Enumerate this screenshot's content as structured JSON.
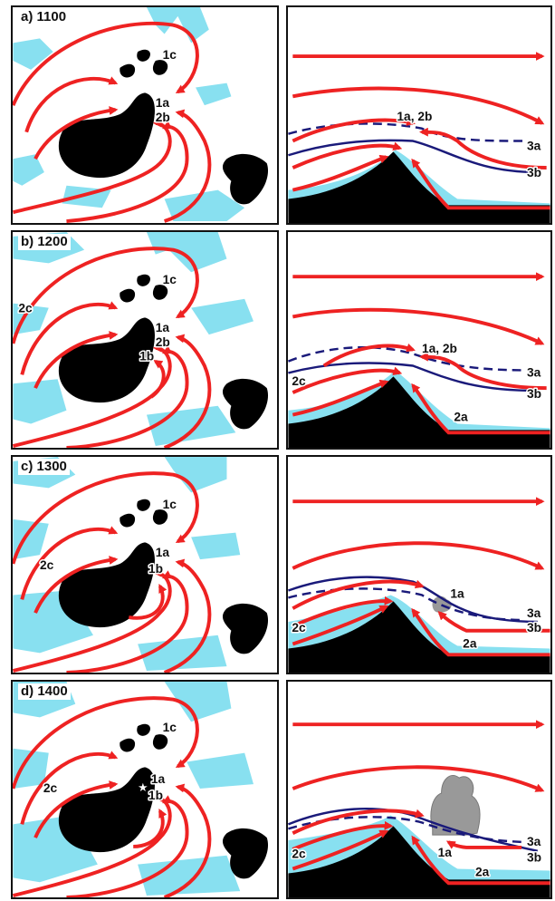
{
  "colors": {
    "flow_arrow": "#ee2222",
    "cloud": "#88e0f0",
    "terrain": "#000000",
    "isentrope": "#1a1a7a",
    "convective_cell": "#999999"
  },
  "panels": [
    {
      "title": "a) 1100",
      "map_labels": {
        "l1c": "1c",
        "l1a": "1a",
        "l2b": "2b"
      },
      "section_labels": {
        "top": "1a, 2b",
        "l3a": "3a",
        "l3b": "3b"
      }
    },
    {
      "title": "b) 1200",
      "map_labels": {
        "l1c": "1c",
        "l2c": "2c",
        "l1a": "1a",
        "l2b": "2b",
        "l1b": "1b"
      },
      "section_labels": {
        "top": "1a, 2b",
        "l3a": "3a",
        "l3b": "3b",
        "l2c": "2c",
        "l2a": "2a"
      }
    },
    {
      "title": "c) 1300",
      "map_labels": {
        "l1c": "1c",
        "l2c": "2c",
        "l1a": "1a",
        "l1b": "1b"
      },
      "section_labels": {
        "l1a": "1a",
        "l3a": "3a",
        "l3b": "3b",
        "l2c": "2c",
        "l2a": "2a"
      }
    },
    {
      "title": "d) 1400",
      "map_labels": {
        "l1c": "1c",
        "l2c": "2c",
        "l1a": "1a",
        "l1b": "1b"
      },
      "section_labels": {
        "l1a": "1a",
        "l3a": "3a",
        "l3b": "3b",
        "l2c": "2c",
        "l2a": "2a"
      }
    }
  ]
}
